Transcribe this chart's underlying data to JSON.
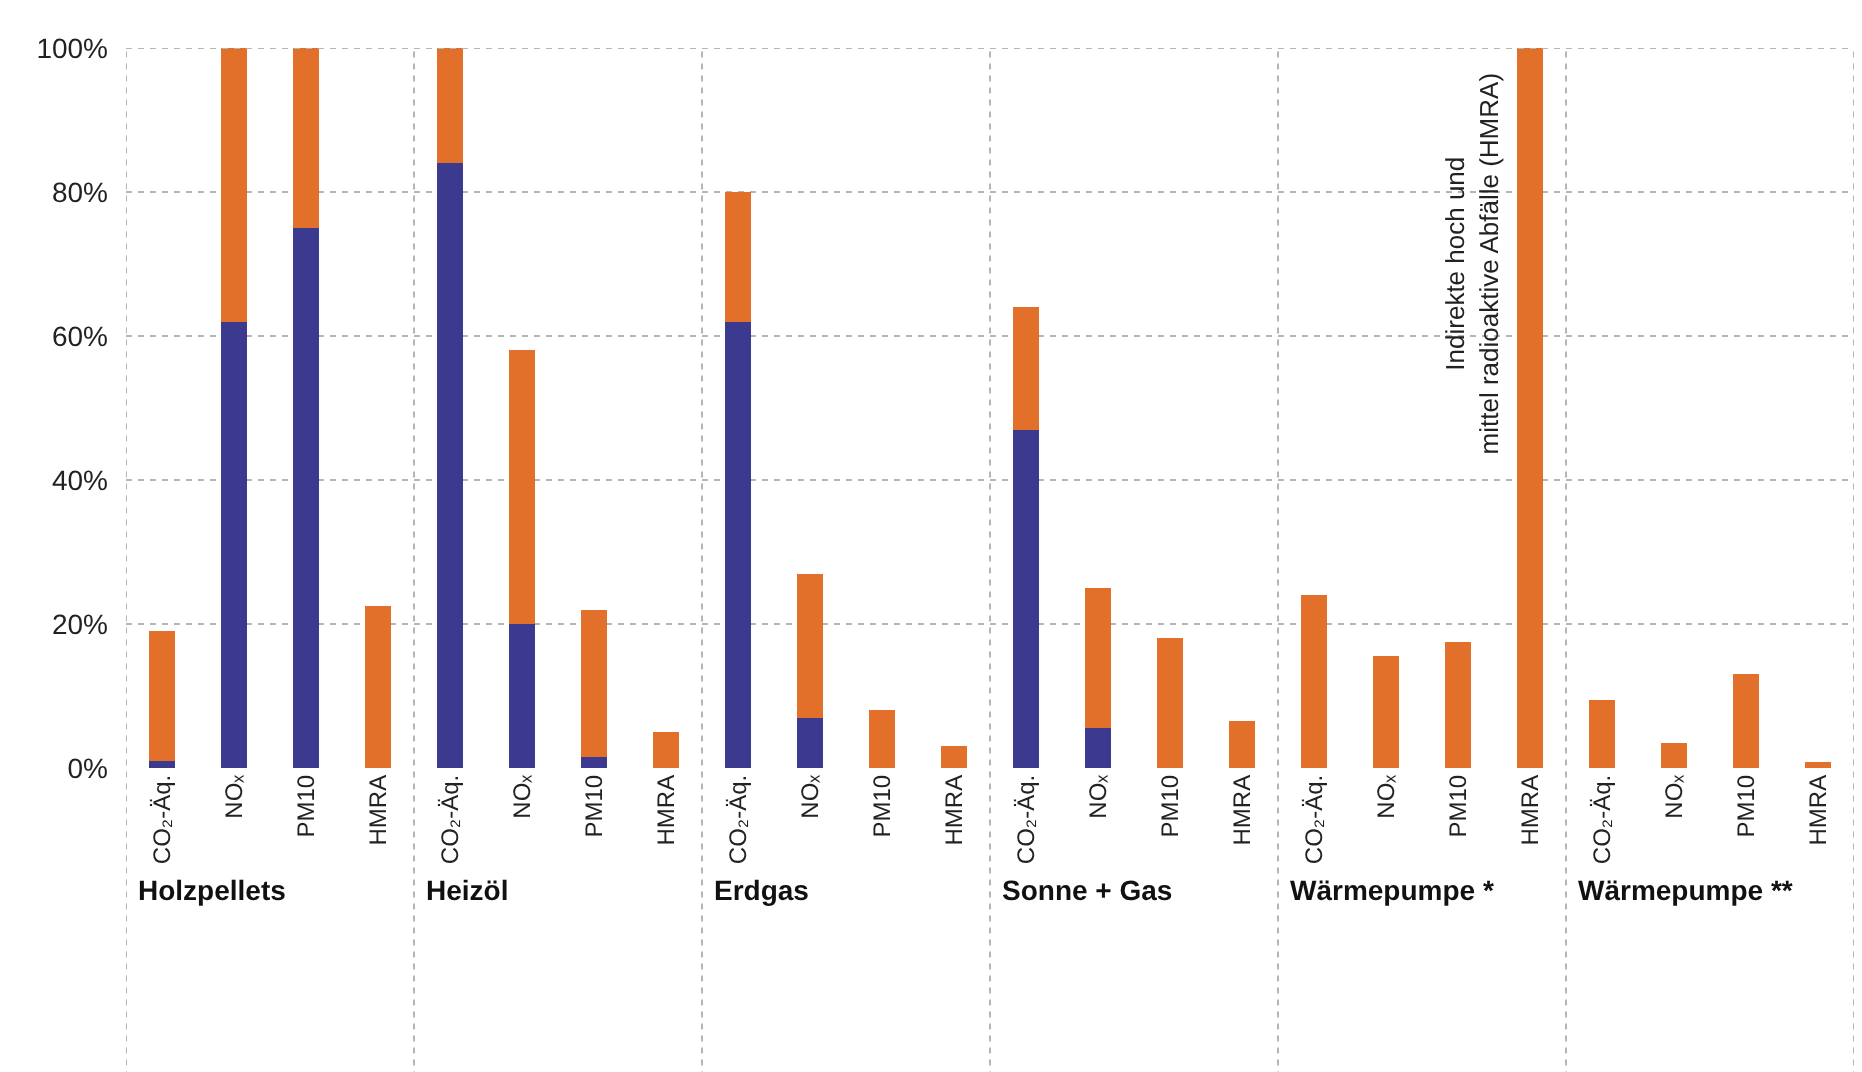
{
  "chart_data": {
    "type": "bar",
    "stacked": true,
    "categories": [
      "CO₂-Äq.",
      "NOₓ",
      "PM10",
      "HMRA",
      "CO₂-Äq.",
      "NOₓ",
      "PM10",
      "HMRA",
      "CO₂-Äq.",
      "NOₓ",
      "PM10",
      "HMRA",
      "CO₂-Äq.",
      "NOₓ",
      "PM10",
      "HMRA",
      "CO₂-Äq.",
      "NOₓ",
      "PM10",
      "HMRA",
      "CO₂-Äq.",
      "NOₓ",
      "PM10",
      "HMRA"
    ],
    "series": [
      {
        "color": "#3b3a8e",
        "values": [
          1,
          62,
          75,
          0,
          84,
          20,
          1.5,
          0,
          62,
          7,
          0,
          0,
          47,
          5.5,
          0,
          0,
          0,
          0,
          0,
          0,
          0,
          0,
          0,
          0
        ]
      },
      {
        "color": "#e2702a",
        "values": [
          18,
          38,
          25,
          22.5,
          16,
          38,
          20.5,
          5,
          18,
          20,
          8,
          3,
          17,
          19.5,
          18,
          6.5,
          24,
          15.5,
          17.5,
          100,
          9.5,
          3.5,
          13,
          0.8
        ]
      }
    ],
    "ylim": [
      0,
      100
    ],
    "yticks": [
      {
        "value": 0,
        "label": "0%"
      },
      {
        "value": 20,
        "label": "20%"
      },
      {
        "value": 40,
        "label": "40%"
      },
      {
        "value": 60,
        "label": "60%"
      },
      {
        "value": 80,
        "label": "80%"
      },
      {
        "value": 100,
        "label": "100%"
      }
    ],
    "grid": "y",
    "annotations": [
      "Holzpellets",
      "Heizöl",
      "Erdgas",
      "Sonne + Gas",
      "Wärmepumpe *",
      "Wärmepumpe **",
      "Indirekte hoch und mittel radioaktive Abfälle (HMRA)"
    ]
  }
}
